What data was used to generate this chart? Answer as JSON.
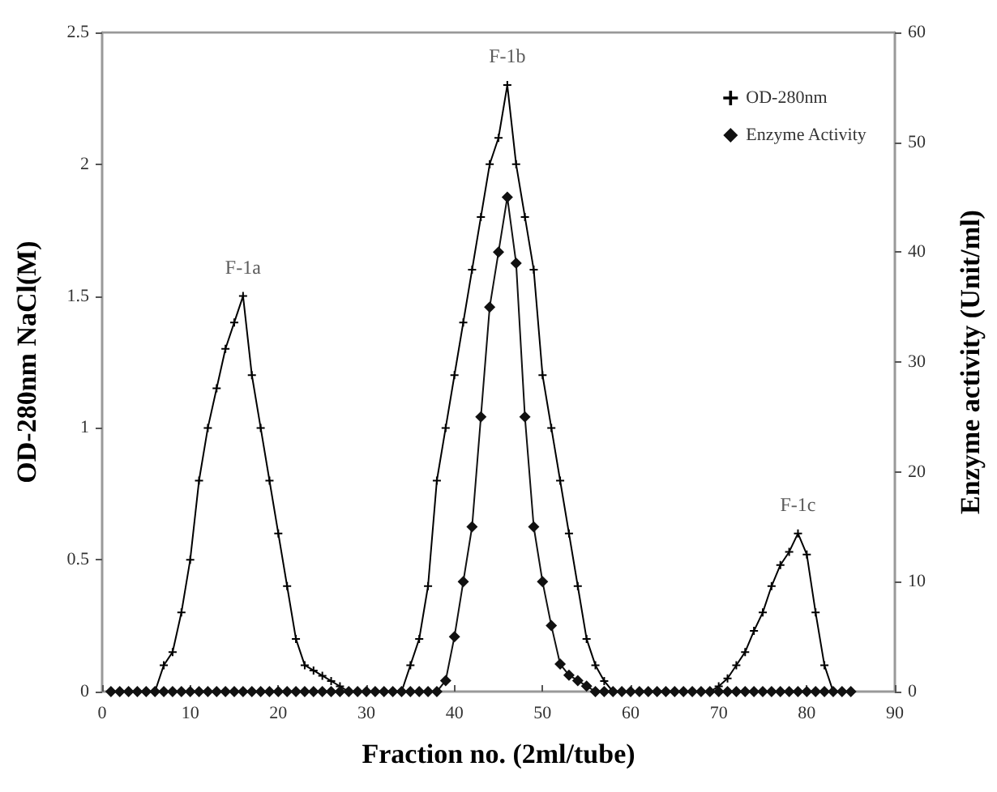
{
  "chart_data": {
    "type": "line",
    "xlabel": "Fraction no. (2ml/tube)",
    "ylabel": "OD-280nm NaCl(M)",
    "y2label": "Enzyme activity (Unit/ml)",
    "x": [
      1,
      2,
      3,
      4,
      5,
      6,
      7,
      8,
      9,
      10,
      11,
      12,
      13,
      14,
      15,
      16,
      17,
      18,
      19,
      20,
      21,
      22,
      23,
      24,
      25,
      26,
      27,
      28,
      29,
      30,
      31,
      32,
      33,
      34,
      35,
      36,
      37,
      38,
      39,
      40,
      41,
      42,
      43,
      44,
      45,
      46,
      47,
      48,
      49,
      50,
      51,
      52,
      53,
      54,
      55,
      56,
      57,
      58,
      59,
      60,
      61,
      62,
      63,
      64,
      65,
      66,
      67,
      68,
      69,
      70,
      71,
      72,
      73,
      74,
      75,
      76,
      77,
      78,
      79,
      80,
      81,
      82,
      83,
      84,
      85
    ],
    "series": [
      {
        "name": "OD-280nm",
        "color": "#000000",
        "marker": "cross",
        "values": [
          0,
          0,
          0,
          0,
          0,
          0,
          0.1,
          0.15,
          0.3,
          0.5,
          0.8,
          1.0,
          1.15,
          1.3,
          1.4,
          1.5,
          1.2,
          1.0,
          0.8,
          0.6,
          0.4,
          0.2,
          0.1,
          0.08,
          0.06,
          0.04,
          0.02,
          0,
          0,
          0,
          0,
          0,
          0,
          0,
          0.1,
          0.2,
          0.4,
          0.8,
          1.0,
          1.2,
          1.4,
          1.6,
          1.8,
          2.0,
          2.1,
          2.3,
          2.0,
          1.8,
          1.6,
          1.2,
          1.0,
          0.8,
          0.6,
          0.4,
          0.2,
          0.1,
          0.04,
          0,
          0,
          0,
          0,
          0,
          0,
          0,
          0,
          0,
          0,
          0,
          0,
          0.02,
          0.05,
          0.1,
          0.15,
          0.23,
          0.3,
          0.4,
          0.48,
          0.53,
          0.6,
          0.52,
          0.3,
          0.1,
          0,
          0,
          0
        ]
      },
      {
        "name": "Enzyme Activity",
        "color": "#111111",
        "marker": "diamond",
        "axis": "y2",
        "values": [
          0,
          0,
          0,
          0,
          0,
          0,
          0,
          0,
          0,
          0,
          0,
          0,
          0,
          0,
          0,
          0,
          0,
          0,
          0,
          0,
          0,
          0,
          0,
          0,
          0,
          0,
          0,
          0,
          0,
          0,
          0,
          0,
          0,
          0,
          0,
          0,
          0,
          0,
          1,
          5,
          10,
          15,
          25,
          35,
          40,
          45,
          39,
          25,
          15,
          10,
          6,
          2.5,
          1.5,
          1,
          0.5,
          0,
          0,
          0,
          0,
          0,
          0,
          0,
          0,
          0,
          0,
          0,
          0,
          0,
          0,
          0,
          0,
          0,
          0,
          0,
          0,
          0,
          0,
          0,
          0,
          0,
          0,
          0,
          0,
          0,
          0
        ]
      }
    ],
    "annotations": [
      {
        "text": "F-1a",
        "x": 16,
        "y": 1.5
      },
      {
        "text": "F-1b",
        "x": 46,
        "y": 2.3
      },
      {
        "text": "F-1c",
        "x": 79,
        "y": 0.6
      }
    ],
    "xlim": [
      0,
      90
    ],
    "xticks": [
      0,
      10,
      20,
      30,
      40,
      50,
      60,
      70,
      80,
      90
    ],
    "ylim": [
      0,
      2.5
    ],
    "yticks": [
      0,
      0.5,
      1,
      1.5,
      2,
      2.5
    ],
    "y2lim": [
      0,
      60
    ],
    "y2ticks": [
      0,
      10,
      20,
      30,
      40,
      50,
      60
    ],
    "legend": "top right",
    "grid": false,
    "line_style": "solid"
  }
}
